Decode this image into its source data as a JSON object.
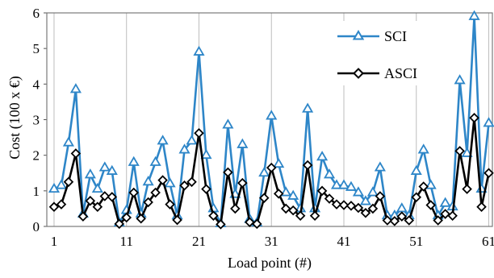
{
  "chart_data": {
    "type": "line",
    "xlabel": "Load point (#)",
    "ylabel": "Cost (100 x €)",
    "xlim": [
      0,
      61.5
    ],
    "ylim": [
      0,
      6
    ],
    "xticks": [
      1,
      11,
      21,
      31,
      41,
      51,
      61
    ],
    "yticks": [
      0,
      1,
      2,
      3,
      4,
      5,
      6
    ],
    "grid": "vertical",
    "legend_position": "top-right",
    "x": [
      1,
      2,
      3,
      4,
      5,
      6,
      7,
      8,
      9,
      10,
      11,
      12,
      13,
      14,
      15,
      16,
      17,
      18,
      19,
      20,
      21,
      22,
      23,
      24,
      25,
      26,
      27,
      28,
      29,
      30,
      31,
      32,
      33,
      34,
      35,
      36,
      37,
      38,
      39,
      40,
      41,
      42,
      43,
      44,
      45,
      46,
      47,
      48,
      49,
      50,
      51,
      52,
      53,
      54,
      55,
      56,
      57,
      58,
      59,
      60,
      61
    ],
    "series": [
      {
        "name": "SCI",
        "color": "#2e86c8",
        "marker": "triangle",
        "values": [
          1.05,
          1.15,
          2.35,
          3.85,
          0.35,
          1.45,
          1.05,
          1.65,
          1.55,
          0.1,
          0.45,
          1.8,
          0.35,
          1.25,
          1.8,
          2.4,
          1.2,
          0.3,
          2.15,
          2.4,
          4.9,
          2.0,
          0.5,
          0.08,
          2.85,
          0.9,
          2.3,
          0.2,
          0.1,
          1.5,
          3.1,
          1.75,
          0.95,
          0.85,
          0.5,
          3.3,
          0.5,
          1.95,
          1.45,
          1.15,
          1.15,
          1.1,
          0.95,
          0.7,
          0.95,
          1.65,
          0.3,
          0.3,
          0.5,
          0.3,
          1.55,
          2.15,
          1.15,
          0.3,
          0.65,
          0.55,
          4.1,
          2.05,
          5.9,
          1.05,
          2.9
        ]
      },
      {
        "name": "ASCI",
        "color": "#000000",
        "marker": "diamond",
        "values": [
          0.55,
          0.62,
          1.25,
          2.05,
          0.28,
          0.72,
          0.55,
          0.85,
          0.83,
          0.07,
          0.25,
          0.95,
          0.22,
          0.68,
          0.95,
          1.3,
          0.62,
          0.18,
          1.15,
          1.25,
          2.62,
          1.05,
          0.3,
          0.06,
          1.52,
          0.5,
          1.22,
          0.12,
          0.07,
          0.8,
          1.65,
          0.92,
          0.5,
          0.45,
          0.3,
          1.72,
          0.3,
          1.0,
          0.78,
          0.62,
          0.6,
          0.58,
          0.52,
          0.38,
          0.5,
          0.85,
          0.17,
          0.15,
          0.28,
          0.17,
          0.82,
          1.12,
          0.6,
          0.17,
          0.35,
          0.3,
          2.12,
          1.05,
          3.05,
          0.55,
          1.5
        ]
      }
    ]
  }
}
